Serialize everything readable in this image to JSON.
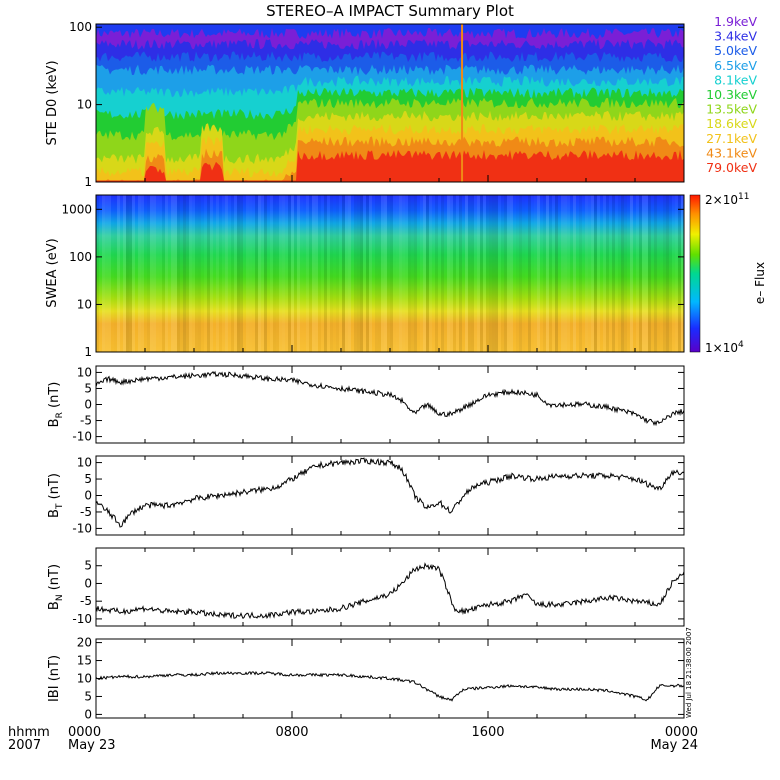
{
  "title": "STEREO–A IMPACT Summary Plot",
  "x_axis": {
    "label_top": "hhmm",
    "label_bottom": "2007",
    "ticks": [
      {
        "t": 0,
        "label": "0000",
        "sub": "May 23"
      },
      {
        "t": 8,
        "label": "0800",
        "sub": ""
      },
      {
        "t": 16,
        "label": "1600",
        "sub": ""
      },
      {
        "t": 24,
        "label": "0000",
        "sub": "May 24"
      }
    ]
  },
  "stamp": "Wed Jul 18 21:38:00 2007",
  "ste": {
    "ylabel": "STE D0 (keV)",
    "yticks": [
      {
        "v": 1,
        "label": "1"
      },
      {
        "v": 10,
        "label": "10"
      },
      {
        "v": 100,
        "label": "100"
      }
    ],
    "legend": [
      {
        "label": "1.9keV",
        "color": "#7a1fd6"
      },
      {
        "label": "3.4keV",
        "color": "#2e2ee6"
      },
      {
        "label": "5.0keV",
        "color": "#1c5ce8"
      },
      {
        "label": "6.5keV",
        "color": "#1d9fe8"
      },
      {
        "label": "8.1keV",
        "color": "#16d0d0"
      },
      {
        "label": "10.3keV",
        "color": "#22cc33"
      },
      {
        "label": "13.5keV",
        "color": "#8fd61a"
      },
      {
        "label": "18.6keV",
        "color": "#d8d818"
      },
      {
        "label": "27.1keV",
        "color": "#f2c21a"
      },
      {
        "label": "43.1keV",
        "color": "#f08a16"
      },
      {
        "label": "79.0keV",
        "color": "#f03014"
      }
    ]
  },
  "swea": {
    "ylabel": "SWEA (eV)",
    "yticks": [
      {
        "v": 1,
        "label": "1"
      },
      {
        "v": 10,
        "label": "10"
      },
      {
        "v": 100,
        "label": "100"
      },
      {
        "v": 1000,
        "label": "1000"
      }
    ],
    "colorbar_label": "e– Flux",
    "colorbar_max": "2×10",
    "colorbar_max_exp": "11",
    "colorbar_min": "1×10",
    "colorbar_min_exp": "4"
  },
  "chart_data": [
    {
      "type": "line",
      "name": "BR",
      "ylabel_main": "B",
      "ylabel_sub": "R",
      "ylabel_unit": " (nT)",
      "ylim": [
        -12,
        12
      ],
      "yticks": [
        -10,
        -5,
        0,
        5,
        10
      ],
      "x_hours": [
        0,
        0.5,
        1,
        2,
        3,
        4,
        5,
        6,
        7,
        8,
        9,
        10,
        11,
        12,
        12.5,
        13,
        13.5,
        14,
        14.5,
        15,
        15.5,
        16,
        17,
        18,
        18.5,
        19,
        20,
        21,
        22,
        22.5,
        23,
        23.5,
        24
      ],
      "y": [
        6,
        8,
        7,
        8,
        8.5,
        9,
        9.5,
        9,
        8,
        7.5,
        6,
        5,
        4,
        3,
        1,
        -3,
        0,
        -3,
        -3,
        -1,
        1,
        3,
        4,
        3,
        0,
        0,
        0,
        -1,
        -3,
        -5,
        -6,
        -3,
        -2
      ],
      "noise": 0.8
    },
    {
      "type": "line",
      "name": "BT",
      "ylabel_main": "B",
      "ylabel_sub": "T",
      "ylabel_unit": " (nT)",
      "ylim": [
        -12,
        12
      ],
      "yticks": [
        -10,
        -5,
        0,
        5,
        10
      ],
      "x_hours": [
        0,
        0.5,
        1,
        1.5,
        2,
        3,
        4,
        5,
        6,
        7,
        7.5,
        8,
        9,
        10,
        11,
        12,
        12.5,
        13,
        13.5,
        14,
        14.5,
        15,
        15.5,
        16,
        17,
        18,
        19,
        20,
        21,
        22,
        23,
        23.5,
        24
      ],
      "y": [
        -2,
        -5,
        -9,
        -5,
        -3,
        -3,
        -1,
        0,
        1,
        2,
        3,
        5,
        9,
        10,
        10.5,
        10,
        8,
        0,
        -4,
        -2,
        -5,
        0,
        3,
        4,
        6,
        5,
        6,
        6,
        6,
        5,
        2,
        7,
        7
      ],
      "noise": 0.9
    },
    {
      "type": "line",
      "name": "BN",
      "ylabel_main": "B",
      "ylabel_sub": "N",
      "ylabel_unit": " (nT)",
      "ylim": [
        -12,
        10
      ],
      "yticks": [
        -10,
        -5,
        0,
        5
      ],
      "x_hours": [
        0,
        1,
        2,
        3,
        4,
        5,
        6,
        7,
        8,
        9,
        10,
        11,
        12,
        12.5,
        13,
        13.5,
        14,
        14.3,
        14.6,
        15,
        16,
        17,
        17.5,
        18,
        19,
        20,
        21,
        22,
        23,
        23.5,
        24
      ],
      "y": [
        -7,
        -8,
        -7,
        -8,
        -8,
        -9,
        -9,
        -9,
        -8,
        -8,
        -7,
        -5,
        -3,
        0,
        4,
        5,
        4,
        -1,
        -7,
        -8,
        -6,
        -5,
        -3,
        -6,
        -6,
        -5,
        -4,
        -5,
        -6,
        0,
        3
      ],
      "noise": 0.8
    },
    {
      "type": "line",
      "name": "IBI",
      "ylabel_main": "IBI",
      "ylabel_sub": "",
      "ylabel_unit": " (nT)",
      "ylim": [
        -1,
        21
      ],
      "yticks": [
        0,
        5,
        10,
        15,
        20
      ],
      "x_hours": [
        0,
        1,
        2,
        3,
        4,
        5,
        6,
        7,
        8,
        9,
        10,
        11,
        12,
        13,
        13.5,
        14,
        14.5,
        15,
        16,
        17,
        18,
        19,
        20,
        21,
        22,
        22.5,
        23,
        24
      ],
      "y": [
        10,
        10.5,
        10.5,
        11,
        11,
        11.5,
        11.5,
        11.5,
        11,
        11,
        11,
        10.5,
        10,
        9,
        7,
        5,
        4,
        7,
        7.5,
        8,
        7.5,
        7,
        7,
        6.5,
        5,
        4,
        8,
        8
      ],
      "noise": 0.4
    }
  ]
}
